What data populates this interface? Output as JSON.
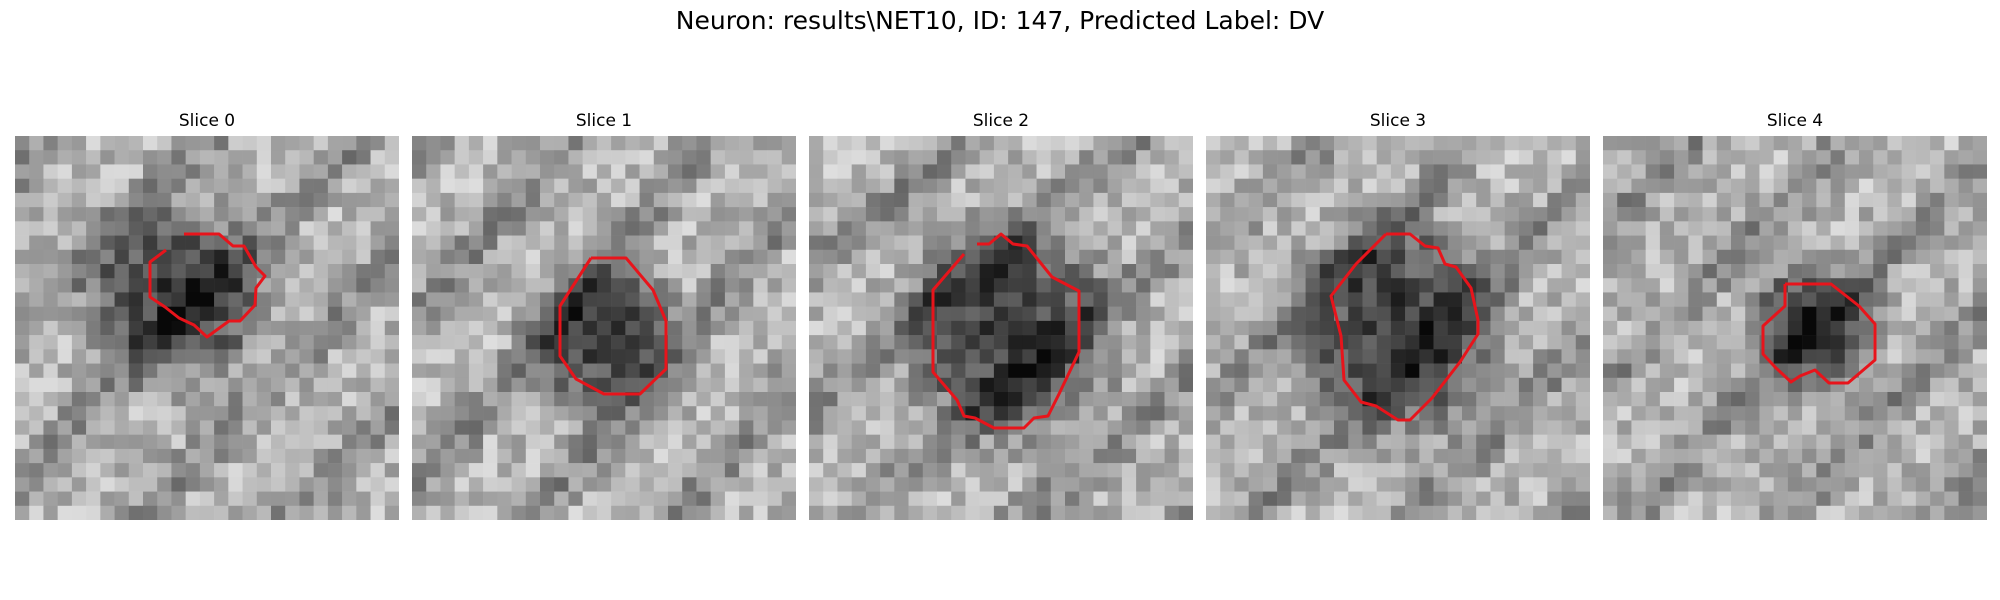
{
  "figure": {
    "title": "Neuron: results\\NET10, ID: 147, Predicted Label: DV"
  },
  "contour_color": "#e8141b",
  "panels": [
    {
      "label": "Slice 0",
      "blob_center": [
        0.42,
        0.41
      ],
      "blob_radius": 0.2,
      "stripe_angle": 45
    },
    {
      "label": "Slice 1",
      "blob_center": [
        0.5,
        0.52
      ],
      "blob_radius": 0.17,
      "stripe_angle": 40
    },
    {
      "label": "Slice 2",
      "blob_center": [
        0.52,
        0.51
      ],
      "blob_radius": 0.24,
      "stripe_angle": 50
    },
    {
      "label": "Slice 3",
      "blob_center": [
        0.5,
        0.5
      ],
      "blob_radius": 0.24,
      "stripe_angle": 45
    },
    {
      "label": "Slice 4",
      "blob_center": [
        0.55,
        0.5
      ],
      "blob_radius": 0.15,
      "stripe_angle": 45
    }
  ]
}
